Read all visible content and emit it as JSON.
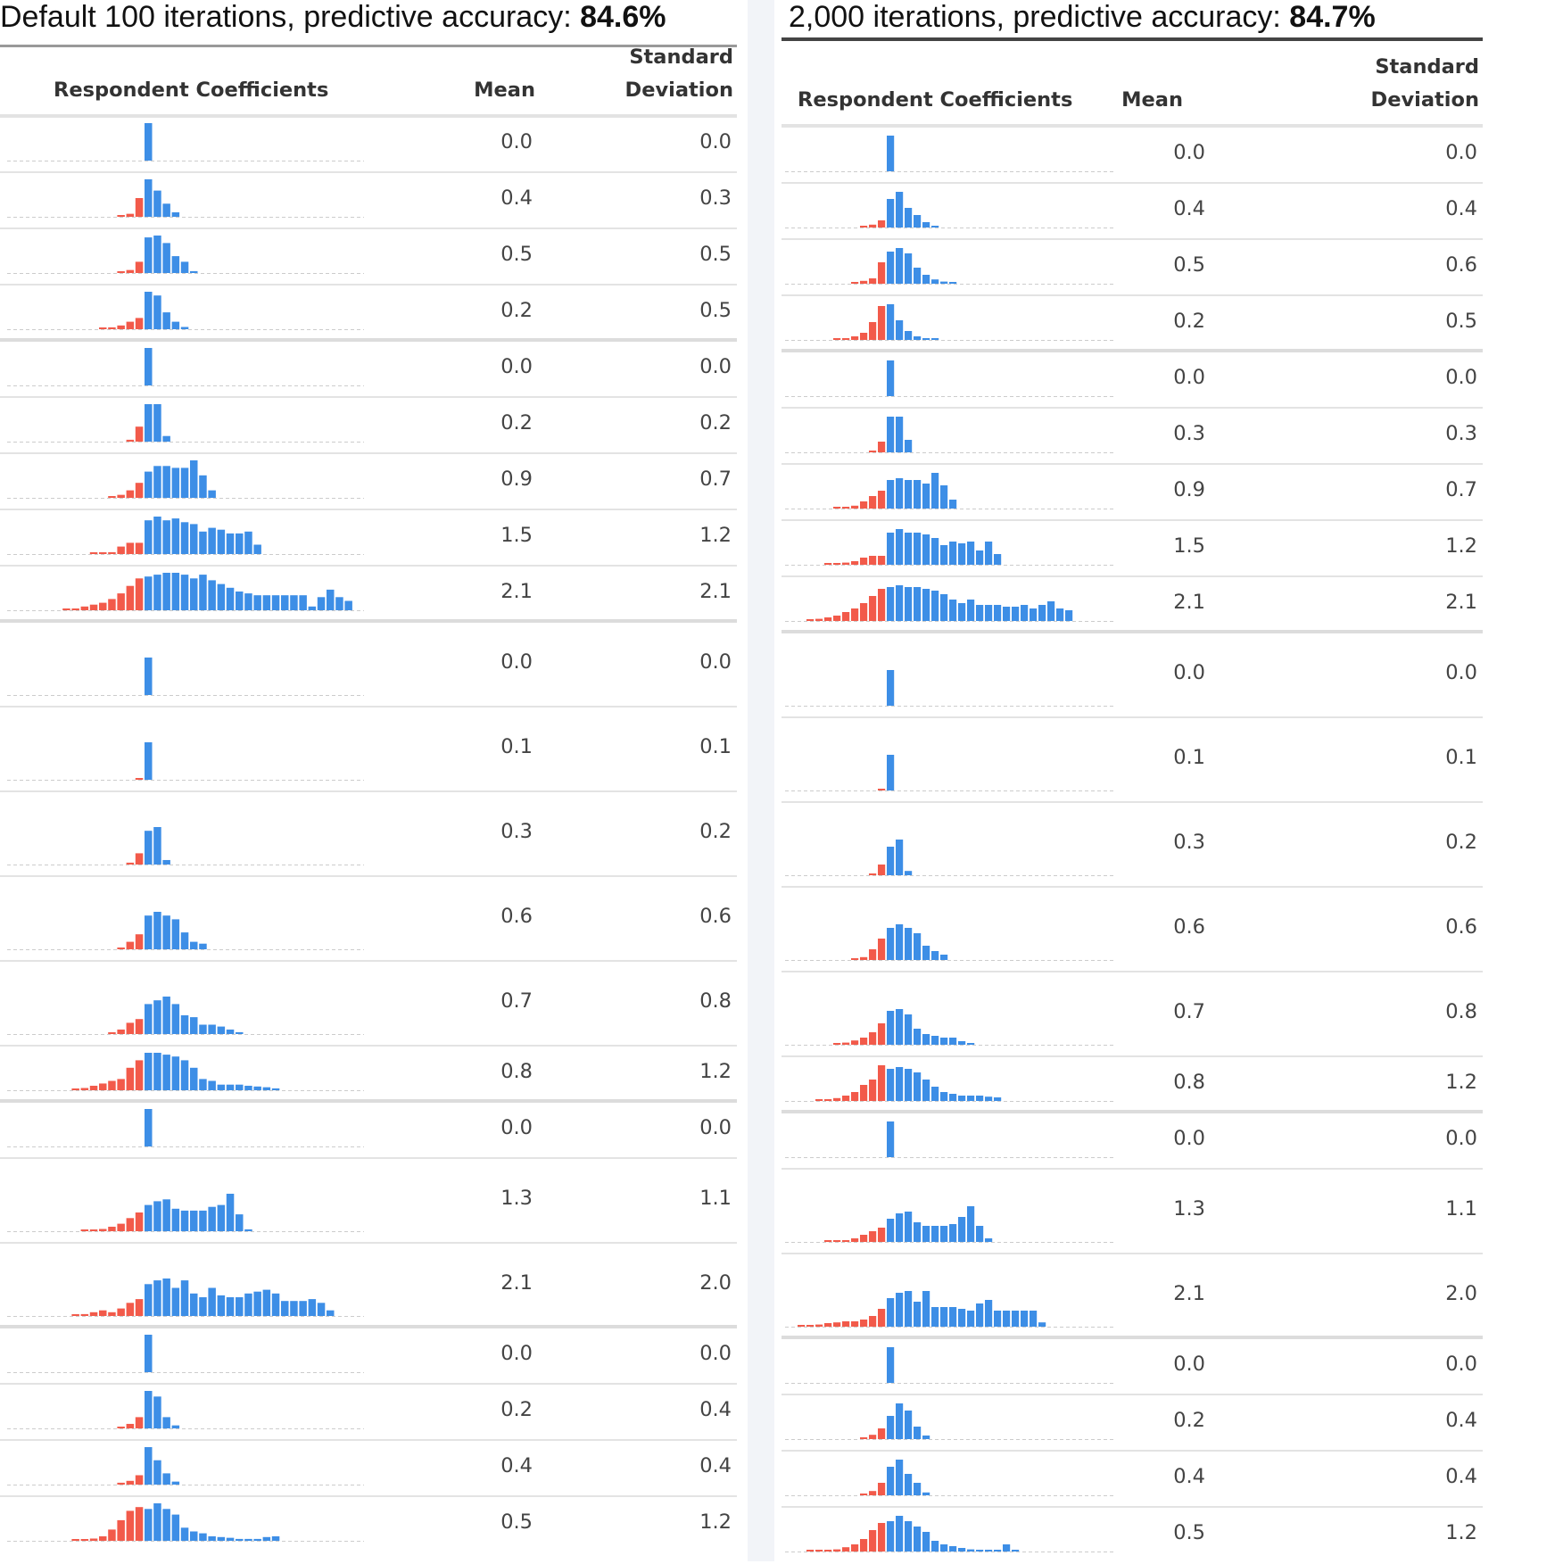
{
  "panels": [
    {
      "title_prefix": "Default 100 iterations, predictive accuracy: ",
      "title_value": "84.6%",
      "columns": {
        "coefficients": "Respondent Coefficients",
        "mean": "Mean",
        "sd_line1": "Standard",
        "sd_line2": "Deviation"
      },
      "rows": [
        {
          "mean": "0.0",
          "sd": "0.0"
        },
        {
          "mean": "0.4",
          "sd": "0.3"
        },
        {
          "mean": "0.5",
          "sd": "0.5"
        },
        {
          "mean": "0.2",
          "sd": "0.5"
        },
        {
          "mean": "0.0",
          "sd": "0.0"
        },
        {
          "mean": "0.2",
          "sd": "0.2"
        },
        {
          "mean": "0.9",
          "sd": "0.7"
        },
        {
          "mean": "1.5",
          "sd": "1.2"
        },
        {
          "mean": "2.1",
          "sd": "2.1"
        },
        {
          "mean": "0.0",
          "sd": "0.0"
        },
        {
          "mean": "0.1",
          "sd": "0.1"
        },
        {
          "mean": "0.3",
          "sd": "0.2"
        },
        {
          "mean": "0.6",
          "sd": "0.6"
        },
        {
          "mean": "0.7",
          "sd": "0.8"
        },
        {
          "mean": "0.8",
          "sd": "1.2"
        },
        {
          "mean": "0.0",
          "sd": "0.0"
        },
        {
          "mean": "1.3",
          "sd": "1.1"
        },
        {
          "mean": "2.1",
          "sd": "2.0"
        },
        {
          "mean": "0.0",
          "sd": "0.0"
        },
        {
          "mean": "0.2",
          "sd": "0.4"
        },
        {
          "mean": "0.4",
          "sd": "0.4"
        },
        {
          "mean": "0.5",
          "sd": "1.2"
        }
      ]
    },
    {
      "title_prefix": "2,000 iterations, predictive accuracy: ",
      "title_value": "84.7%",
      "columns": {
        "coefficients": "Respondent Coefficients",
        "mean": "Mean",
        "sd_line1": "Standard",
        "sd_line2": "Deviation"
      },
      "rows": [
        {
          "mean": "0.0",
          "sd": "0.0"
        },
        {
          "mean": "0.4",
          "sd": "0.4"
        },
        {
          "mean": "0.5",
          "sd": "0.6"
        },
        {
          "mean": "0.2",
          "sd": "0.5"
        },
        {
          "mean": "0.0",
          "sd": "0.0"
        },
        {
          "mean": "0.3",
          "sd": "0.3"
        },
        {
          "mean": "0.9",
          "sd": "0.7"
        },
        {
          "mean": "1.5",
          "sd": "1.2"
        },
        {
          "mean": "2.1",
          "sd": "2.1"
        },
        {
          "mean": "0.0",
          "sd": "0.0"
        },
        {
          "mean": "0.1",
          "sd": "0.1"
        },
        {
          "mean": "0.3",
          "sd": "0.2"
        },
        {
          "mean": "0.6",
          "sd": "0.6"
        },
        {
          "mean": "0.7",
          "sd": "0.8"
        },
        {
          "mean": "0.8",
          "sd": "1.2"
        },
        {
          "mean": "0.0",
          "sd": "0.0"
        },
        {
          "mean": "1.3",
          "sd": "1.1"
        },
        {
          "mean": "2.1",
          "sd": "2.0"
        },
        {
          "mean": "0.0",
          "sd": "0.0"
        },
        {
          "mean": "0.2",
          "sd": "0.4"
        },
        {
          "mean": "0.4",
          "sd": "0.4"
        },
        {
          "mean": "0.5",
          "sd": "1.2"
        }
      ]
    }
  ],
  "chart_data": {
    "type": "bar",
    "colors": {
      "negative": "#f25a4a",
      "positive": "#3d8ee6",
      "baseline": "#cccccc"
    },
    "histograms": [
      [
        {
          "neg": [],
          "pos": [
            1
          ]
        },
        {
          "neg": [
            0.04,
            0.08,
            0.5
          ],
          "pos": [
            1,
            0.7,
            0.35,
            0.12
          ]
        },
        {
          "neg": [
            0.04,
            0.08,
            0.3
          ],
          "pos": [
            0.95,
            1,
            0.8,
            0.45,
            0.3,
            0.05
          ]
        },
        {
          "neg": [
            0.03,
            0.05,
            0.1,
            0.2,
            0.3
          ],
          "pos": [
            1,
            0.9,
            0.45,
            0.2,
            0.06
          ]
        },
        {
          "neg": [],
          "pos": [
            1
          ]
        },
        {
          "neg": [
            0.05,
            0.4
          ],
          "pos": [
            1,
            1,
            0.15
          ]
        },
        {
          "neg": [
            0.03,
            0.08,
            0.2,
            0.4
          ],
          "pos": [
            0.7,
            0.85,
            0.85,
            0.8,
            0.8,
            1,
            0.6,
            0.2
          ]
        },
        {
          "neg": [
            0.02,
            0.03,
            0.05,
            0.2,
            0.3,
            0.3
          ],
          "pos": [
            0.9,
            1,
            0.9,
            0.95,
            0.85,
            0.8,
            0.6,
            0.7,
            0.65,
            0.55,
            0.55,
            0.6,
            0.25
          ]
        },
        {
          "neg": [
            0.03,
            0.04,
            0.1,
            0.15,
            0.2,
            0.3,
            0.45,
            0.65,
            0.85
          ],
          "pos": [
            0.9,
            0.95,
            1,
            1,
            0.95,
            0.85,
            0.95,
            0.8,
            0.7,
            0.6,
            0.5,
            0.45,
            0.4,
            0.4,
            0.4,
            0.4,
            0.4,
            0.4,
            0.1,
            0.35,
            0.55,
            0.35,
            0.25
          ]
        },
        {
          "neg": [],
          "pos": [
            1
          ]
        },
        {
          "neg": [
            0.04
          ],
          "pos": [
            1
          ]
        },
        {
          "neg": [
            0.05,
            0.3
          ],
          "pos": [
            0.9,
            1,
            0.12
          ]
        },
        {
          "neg": [
            0.04,
            0.2,
            0.4
          ],
          "pos": [
            0.9,
            1,
            0.9,
            0.8,
            0.45,
            0.2,
            0.15
          ]
        },
        {
          "neg": [
            0.03,
            0.12,
            0.3,
            0.4
          ],
          "pos": [
            0.8,
            0.9,
            1,
            0.8,
            0.5,
            0.45,
            0.25,
            0.25,
            0.2,
            0.12,
            0.05
          ]
        },
        {
          "neg": [
            0.03,
            0.06,
            0.12,
            0.18,
            0.25,
            0.3,
            0.6,
            0.8
          ],
          "pos": [
            1,
            1,
            0.95,
            0.9,
            0.8,
            0.6,
            0.3,
            0.25,
            0.15,
            0.15,
            0.15,
            0.12,
            0.1,
            0.08,
            0.05
          ]
        },
        {
          "neg": [],
          "pos": [
            1
          ]
        },
        {
          "neg": [
            0.02,
            0.03,
            0.06,
            0.12,
            0.2,
            0.35,
            0.5
          ],
          "pos": [
            0.7,
            0.8,
            0.85,
            0.6,
            0.55,
            0.55,
            0.55,
            0.65,
            0.7,
            1,
            0.45,
            0.05
          ]
        },
        {
          "neg": [
            0.02,
            0.05,
            0.1,
            0.15,
            0.1,
            0.2,
            0.35,
            0.45
          ],
          "pos": [
            0.85,
            0.95,
            1,
            0.75,
            0.95,
            0.6,
            0.5,
            0.75,
            0.55,
            0.5,
            0.5,
            0.6,
            0.65,
            0.7,
            0.6,
            0.4,
            0.4,
            0.4,
            0.45,
            0.35,
            0.15
          ]
        },
        {
          "neg": [],
          "pos": [
            1
          ]
        },
        {
          "neg": [
            0.04,
            0.12,
            0.3
          ],
          "pos": [
            1,
            0.85,
            0.3,
            0.08
          ]
        },
        {
          "neg": [
            0.05,
            0.1,
            0.25
          ],
          "pos": [
            1,
            0.65,
            0.3,
            0.08
          ]
        },
        {
          "neg": [
            0.02,
            0.03,
            0.06,
            0.12,
            0.3,
            0.55,
            0.8,
            0.9
          ],
          "pos": [
            0.85,
            1,
            0.85,
            0.7,
            0.35,
            0.25,
            0.2,
            0.12,
            0.1,
            0.08,
            0.05,
            0.05,
            0.05,
            0.1,
            0.12
          ]
        }
      ],
      [
        {
          "neg": [],
          "pos": [
            1
          ]
        },
        {
          "neg": [
            0.04,
            0.08,
            0.2
          ],
          "pos": [
            0.8,
            1,
            0.55,
            0.35,
            0.15,
            0.05
          ]
        },
        {
          "neg": [
            0.04,
            0.08,
            0.15,
            0.6
          ],
          "pos": [
            0.9,
            1,
            0.85,
            0.45,
            0.25,
            0.12,
            0.06,
            0.03
          ]
        },
        {
          "neg": [
            0.03,
            0.05,
            0.1,
            0.2,
            0.5,
            0.95
          ],
          "pos": [
            1,
            0.55,
            0.25,
            0.1,
            0.05,
            0.03
          ]
        },
        {
          "neg": [],
          "pos": [
            1
          ]
        },
        {
          "neg": [
            0.05,
            0.3
          ],
          "pos": [
            1,
            1,
            0.35
          ]
        },
        {
          "neg": [
            0.02,
            0.04,
            0.08,
            0.2,
            0.35,
            0.5
          ],
          "pos": [
            0.8,
            0.85,
            0.8,
            0.8,
            0.7,
            1,
            0.65,
            0.25
          ]
        },
        {
          "neg": [
            0.02,
            0.04,
            0.06,
            0.1,
            0.2,
            0.25,
            0.25
          ],
          "pos": [
            0.9,
            1,
            0.9,
            0.9,
            0.85,
            0.75,
            0.55,
            0.65,
            0.6,
            0.65,
            0.4,
            0.65,
            0.3
          ]
        },
        {
          "neg": [
            0.04,
            0.06,
            0.1,
            0.15,
            0.25,
            0.35,
            0.5,
            0.7,
            0.9
          ],
          "pos": [
            0.95,
            1,
            0.95,
            0.95,
            0.9,
            0.85,
            0.75,
            0.6,
            0.5,
            0.6,
            0.45,
            0.45,
            0.45,
            0.4,
            0.4,
            0.45,
            0.35,
            0.45,
            0.55,
            0.35,
            0.3
          ]
        },
        {
          "neg": [],
          "pos": [
            1
          ]
        },
        {
          "neg": [
            0.04
          ],
          "pos": [
            1
          ]
        },
        {
          "neg": [
            0.05,
            0.3
          ],
          "pos": [
            0.8,
            1,
            0.12
          ]
        },
        {
          "neg": [
            0.04,
            0.08,
            0.3,
            0.6
          ],
          "pos": [
            0.9,
            1,
            0.9,
            0.75,
            0.4,
            0.25,
            0.15
          ]
        },
        {
          "neg": [
            0.03,
            0.06,
            0.12,
            0.2,
            0.35,
            0.6
          ],
          "pos": [
            0.95,
            1,
            0.85,
            0.45,
            0.3,
            0.25,
            0.2,
            0.2,
            0.1,
            0.05
          ]
        },
        {
          "neg": [
            0.02,
            0.04,
            0.08,
            0.15,
            0.25,
            0.45,
            0.6,
            1
          ],
          "pos": [
            0.9,
            0.95,
            0.9,
            0.8,
            0.6,
            0.4,
            0.25,
            0.2,
            0.15,
            0.15,
            0.15,
            0.12,
            0.1
          ]
        },
        {
          "neg": [],
          "pos": [
            1
          ]
        },
        {
          "neg": [
            0.02,
            0.03,
            0.05,
            0.1,
            0.2,
            0.3,
            0.4
          ],
          "pos": [
            0.65,
            0.8,
            0.85,
            0.55,
            0.45,
            0.45,
            0.45,
            0.5,
            0.7,
            1,
            0.45,
            0.1
          ]
        },
        {
          "neg": [
            0.02,
            0.04,
            0.06,
            0.1,
            0.12,
            0.15,
            0.15,
            0.2,
            0.3,
            0.5
          ],
          "pos": [
            0.8,
            0.95,
            1,
            0.7,
            1,
            0.55,
            0.55,
            0.55,
            0.5,
            0.45,
            0.65,
            0.75,
            0.45,
            0.45,
            0.45,
            0.45,
            0.45,
            0.12
          ]
        },
        {
          "neg": [],
          "pos": [
            1
          ]
        },
        {
          "neg": [
            0.04,
            0.12,
            0.3
          ],
          "pos": [
            0.65,
            1,
            0.8,
            0.35,
            0.1
          ]
        },
        {
          "neg": [
            0.05,
            0.12,
            0.35
          ],
          "pos": [
            0.8,
            1,
            0.6,
            0.35,
            0.08
          ]
        },
        {
          "neg": [
            0.02,
            0.03,
            0.04,
            0.06,
            0.12,
            0.2,
            0.35,
            0.6,
            0.8
          ],
          "pos": [
            0.85,
            1,
            0.85,
            0.7,
            0.55,
            0.3,
            0.2,
            0.15,
            0.1,
            0.06,
            0.05,
            0.05,
            0.05,
            0.2,
            0.05
          ]
        }
      ]
    ]
  }
}
